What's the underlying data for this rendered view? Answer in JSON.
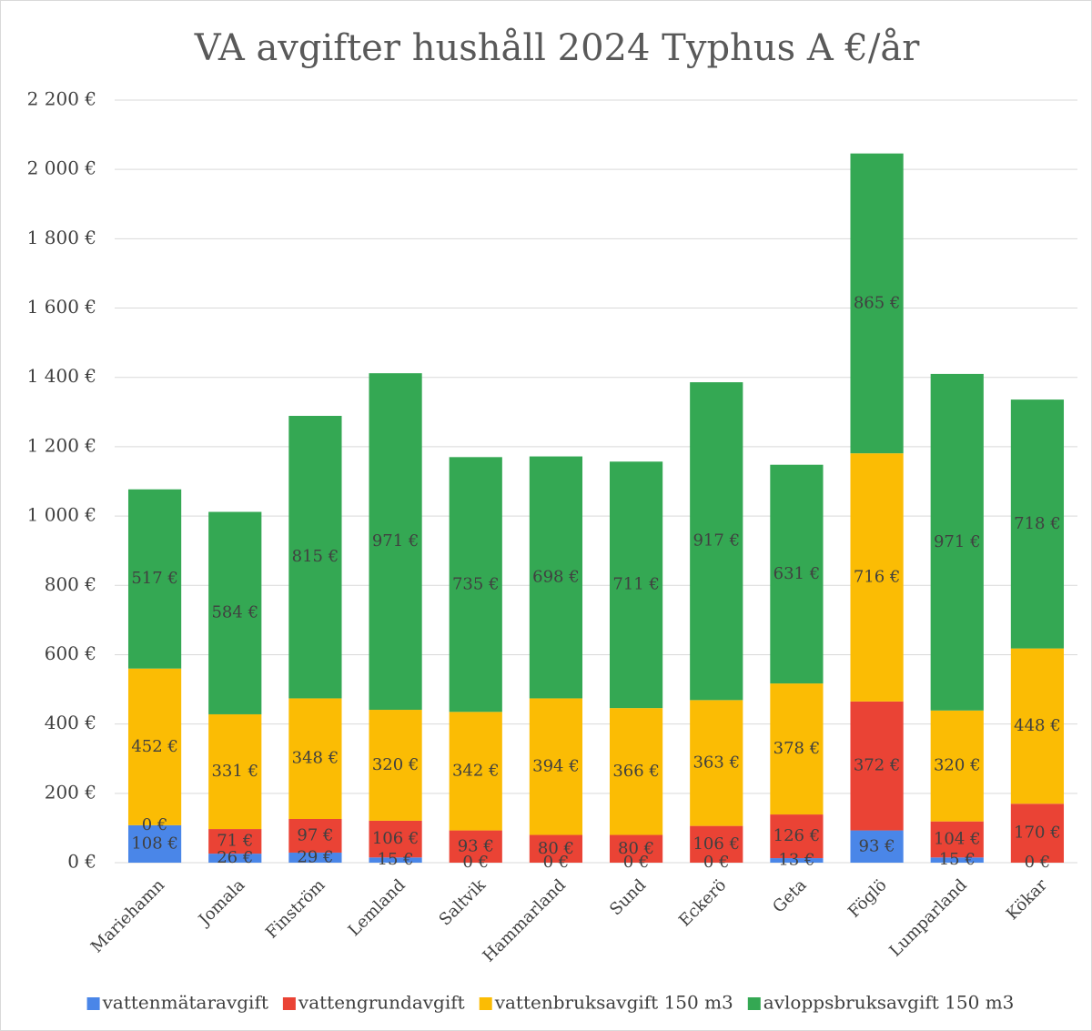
{
  "chart_data": {
    "type": "bar",
    "stacked": true,
    "title": "VA avgifter hushåll 2024 Typhus A €/år",
    "categories": [
      "Mariehamn",
      "Jomala",
      "Finström",
      "Lemland",
      "Saltvik",
      "Hammarland",
      "Sund",
      "Eckerö",
      "Geta",
      "Föglö",
      "Lumparland",
      "Kökar"
    ],
    "series": [
      {
        "name": "vattenmätaravgift",
        "color": "#4a86e8",
        "values": [
          108,
          26,
          29,
          15,
          0,
          0,
          0,
          0,
          13,
          93,
          15,
          0
        ],
        "value_labels": [
          "108 €",
          "26 €",
          "29 €",
          "15 €",
          "0 €",
          "0 €",
          "0 €",
          "0 €",
          "13 €",
          "93 €",
          "15 €",
          "0 €"
        ]
      },
      {
        "name": "vattengrundavgift",
        "color": "#ea4335",
        "values": [
          0,
          71,
          97,
          106,
          93,
          80,
          80,
          106,
          126,
          372,
          104,
          170
        ],
        "value_labels": [
          "0 €",
          "71 €",
          "97 €",
          "106 €",
          "93 €",
          "80 €",
          "80 €",
          "106 €",
          "126 €",
          "372 €",
          "104 €",
          "170 €"
        ]
      },
      {
        "name": "vattenbruksavgift 150 m3",
        "color": "#fbbc04",
        "values": [
          452,
          331,
          348,
          320,
          342,
          394,
          366,
          363,
          378,
          716,
          320,
          448
        ],
        "value_labels": [
          "452 €",
          "331 €",
          "348 €",
          "320 €",
          "342 €",
          "394 €",
          "366 €",
          "363 €",
          "378 €",
          "716 €",
          "320 €",
          "448 €"
        ]
      },
      {
        "name": "avloppsbruksavgift 150 m3",
        "color": "#34a853",
        "values": [
          517,
          584,
          815,
          971,
          735,
          698,
          711,
          917,
          631,
          865,
          971,
          718
        ],
        "value_labels": [
          "517 €",
          "584 €",
          "815 €",
          "971 €",
          "735 €",
          "698 €",
          "711 €",
          "917 €",
          "631 €",
          "865 €",
          "971 €",
          "718 €"
        ]
      }
    ],
    "ylim": [
      0,
      2200
    ],
    "yticks": [
      {
        "value": 0,
        "label": "0 €"
      },
      {
        "value": 200,
        "label": "200 €"
      },
      {
        "value": 400,
        "label": "400 €"
      },
      {
        "value": 600,
        "label": "600 €"
      },
      {
        "value": 800,
        "label": "800 €"
      },
      {
        "value": 1000,
        "label": "1 000 €"
      },
      {
        "value": 1200,
        "label": "1 200 €"
      },
      {
        "value": 1400,
        "label": "1 400 €"
      },
      {
        "value": 1600,
        "label": "1 600 €"
      },
      {
        "value": 1800,
        "label": "1 800 €"
      },
      {
        "value": 2000,
        "label": "2 000 €"
      },
      {
        "value": 2200,
        "label": "2 200 €"
      }
    ],
    "grid": true,
    "legend": "bottom"
  }
}
